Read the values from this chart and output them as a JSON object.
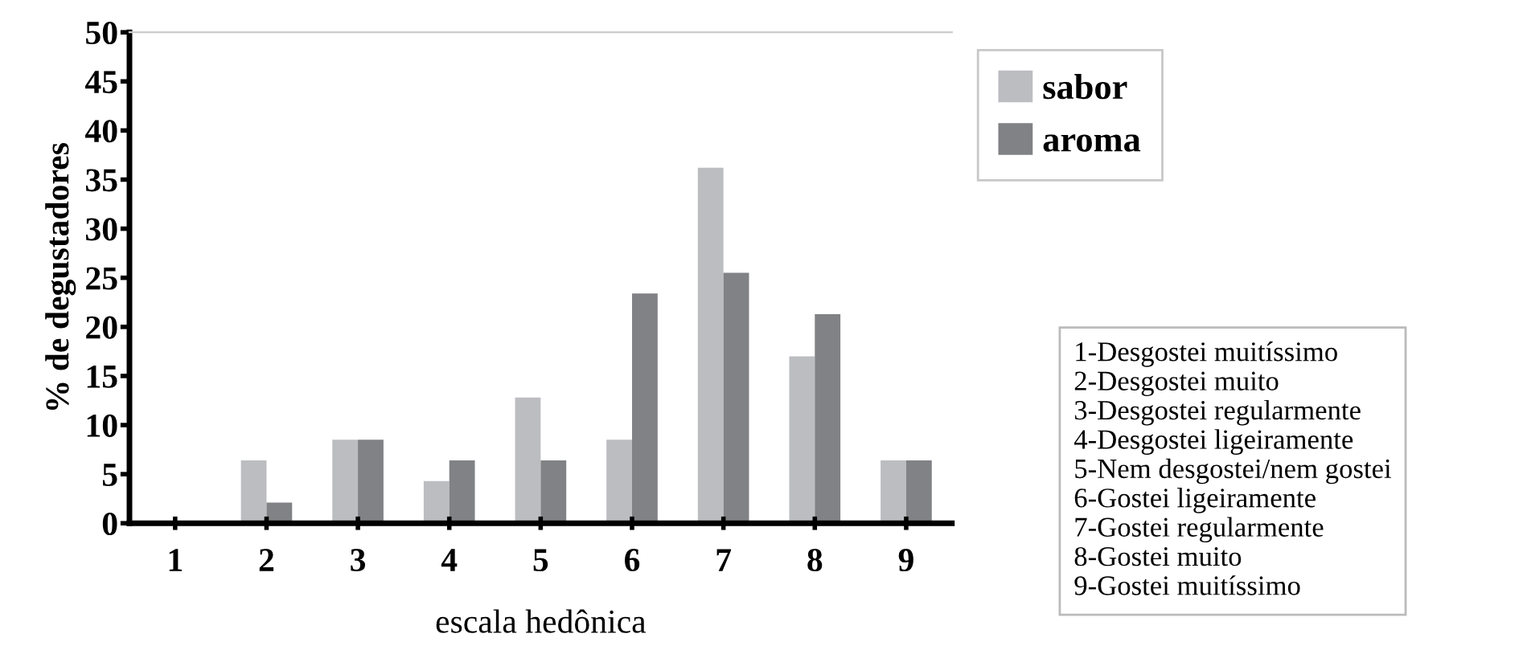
{
  "chart_data": {
    "type": "bar",
    "xlabel": "escala hedônica",
    "ylabel": "% de degustadores",
    "categories": [
      "1",
      "2",
      "3",
      "4",
      "5",
      "6",
      "7",
      "8",
      "9"
    ],
    "series": [
      {
        "name": "sabor",
        "color": "#bcbdc1",
        "values": [
          0,
          6.4,
          8.5,
          4.3,
          12.8,
          8.5,
          36.2,
          17.0,
          6.4
        ]
      },
      {
        "name": "aroma",
        "color": "#818286",
        "values": [
          0,
          2.1,
          8.5,
          6.4,
          6.4,
          23.4,
          25.5,
          21.3,
          6.4
        ]
      }
    ],
    "ylim": [
      0,
      50
    ],
    "yticks": [
      0,
      5,
      10,
      15,
      20,
      25,
      30,
      35,
      40,
      45,
      50
    ],
    "grid": false,
    "legend": "top right",
    "annotations": [
      "1-Desgostei muitíssimo\n2-Desgostei muito\n3-Desgostei regularmente\n4-Desgostei ligeiramente\n5-Nem desgostei/nem gostei\n6-Gostei ligeiramente\n7-Gostei regularmente\n8-Gostei muito\n9-Gostei muitíssimo"
    ]
  }
}
